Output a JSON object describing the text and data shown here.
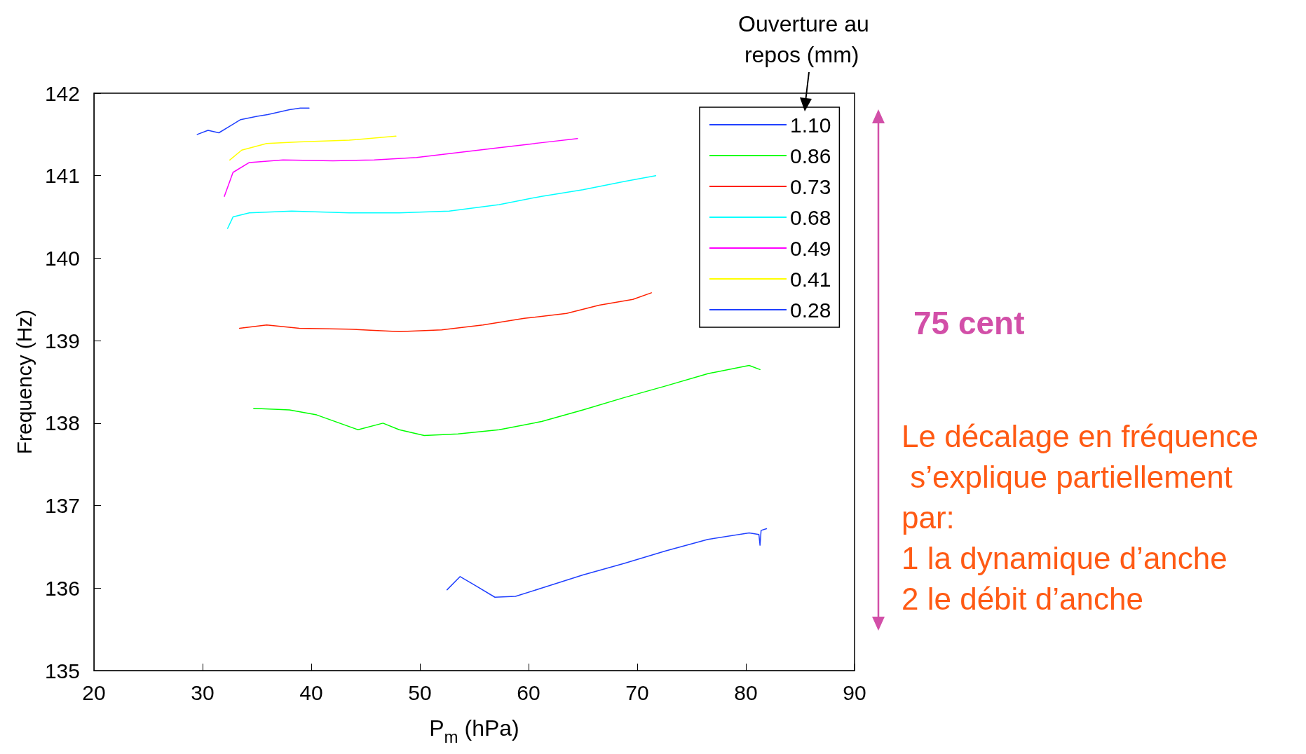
{
  "chart_data": {
    "type": "line",
    "xlabel": "P$_{m}$ (hPa)",
    "ylabel": "Frequency (Hz)",
    "legend_title": "Ouverture au repos (mm)",
    "xlim": [
      20,
      90
    ],
    "xticks": [
      20,
      30,
      40,
      50,
      60,
      70,
      80,
      90
    ],
    "ylim": [
      135,
      142
    ],
    "yticks": [
      135,
      136,
      137,
      138,
      139,
      140,
      141,
      142
    ],
    "grid": false,
    "legend": "top right",
    "marker": "none",
    "line_style": "solid",
    "annotations": [
      "75 cent",
      "Le décalage en fréquence s’explique partiellement par:\n1 la dynamique d’anche\n2 le débit d’anche"
    ],
    "series": [
      {
        "name": "1.10",
        "color": "#2040ff",
        "x": [
          29.5,
          30.5,
          31.5,
          32.5,
          33.5,
          35,
          36,
          37,
          38,
          39,
          39.8
        ],
        "values": [
          141.5,
          141.55,
          141.52,
          141.6,
          141.68,
          141.72,
          141.74,
          141.77,
          141.8,
          141.82,
          141.82
        ]
      },
      {
        "name": "0.86",
        "color": "#00ff00",
        "x": [
          34.7,
          38,
          40.5,
          44.3,
          46.6,
          48.1,
          50.4,
          53.5,
          57.3,
          61.2,
          65,
          68.8,
          72.6,
          76.5,
          80.3,
          81.3
        ],
        "values": [
          138.18,
          138.16,
          138.1,
          137.92,
          138.0,
          137.92,
          137.85,
          137.87,
          137.92,
          138.02,
          138.16,
          138.31,
          138.45,
          138.6,
          138.7,
          138.65
        ]
      },
      {
        "name": "0.73",
        "color": "#ff2000",
        "x": [
          33.4,
          35.9,
          38.9,
          43.5,
          48.1,
          52,
          55.8,
          59.6,
          63.5,
          66.5,
          69.6,
          71.3
        ],
        "values": [
          139.15,
          139.19,
          139.15,
          139.14,
          139.11,
          139.13,
          139.19,
          139.27,
          139.33,
          139.43,
          139.5,
          139.58
        ]
      },
      {
        "name": "0.68",
        "color": "#00ffff",
        "x": [
          32.3,
          32.8,
          34.3,
          38.2,
          43.5,
          48.1,
          52.7,
          57.3,
          61.2,
          65,
          68.8,
          71.7
        ],
        "values": [
          140.36,
          140.5,
          140.55,
          140.57,
          140.55,
          140.55,
          140.57,
          140.65,
          140.75,
          140.83,
          140.93,
          141.0
        ]
      },
      {
        "name": "0.49",
        "color": "#ff00ff",
        "x": [
          32,
          32.8,
          34.3,
          37.4,
          42,
          45.8,
          49.7,
          53.5,
          57.3,
          61.2,
          64.5
        ],
        "values": [
          140.75,
          141.04,
          141.16,
          141.19,
          141.18,
          141.19,
          141.22,
          141.28,
          141.34,
          141.4,
          141.45
        ]
      },
      {
        "name": "0.41",
        "color": "#ffff00",
        "x": [
          32.5,
          33.6,
          35.9,
          38.9,
          43.5,
          47.8
        ],
        "values": [
          141.19,
          141.31,
          141.39,
          141.41,
          141.43,
          141.48
        ]
      },
      {
        "name": "0.28",
        "color": "#2040ff",
        "x": [
          52.5,
          53.7,
          55,
          56.9,
          58.8,
          61.2,
          65,
          68.8,
          72.6,
          76.5,
          80.3,
          81.2,
          81.3,
          81.4,
          81.9
        ],
        "values": [
          135.98,
          136.14,
          136.04,
          135.89,
          135.9,
          136.0,
          136.16,
          136.3,
          136.45,
          136.59,
          136.67,
          136.65,
          136.52,
          136.7,
          136.72
        ]
      }
    ]
  }
}
